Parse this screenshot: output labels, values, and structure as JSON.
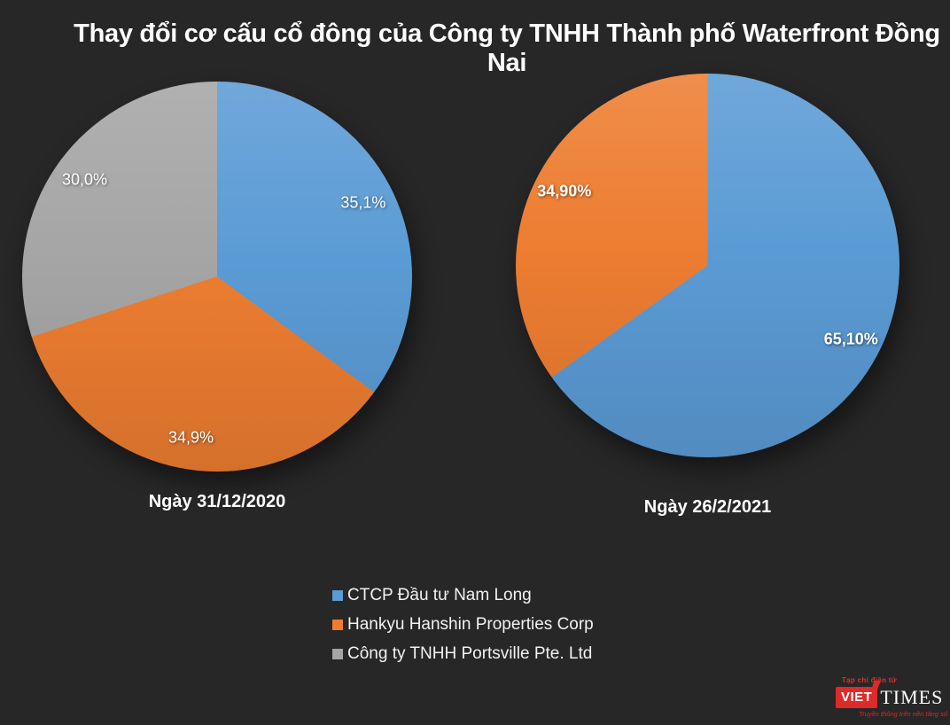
{
  "title": "Thay đổi cơ cấu cổ đông của Công ty TNHH Thành phố Waterfront Đồng Nai",
  "colors": {
    "background": "#272727",
    "blue": "#5B9BD5",
    "orange": "#ED7D31",
    "gray": "#A5A5A5",
    "text": "#FFFFFF",
    "logo_red": "#DD2A2A"
  },
  "chart_data": [
    {
      "type": "pie",
      "caption": "Ngày 31/12/2020",
      "bold_labels": false,
      "label_radius": 0.84,
      "start_angle_deg": 0,
      "direction": "clockwise",
      "slices": [
        {
          "label": "CTCP Đầu tư Nam Long",
          "value": 35.1,
          "display": "35,1%",
          "color": "#5B9BD5"
        },
        {
          "label": "Hankyu Hanshin Properties Corp",
          "value": 34.9,
          "display": "34,9%",
          "color": "#ED7D31"
        },
        {
          "label": "Công ty TNHH Portsville Pte. Ltd",
          "value": 30.0,
          "display": "30,0%",
          "color": "#A5A5A5"
        }
      ]
    },
    {
      "type": "pie",
      "caption": "Ngày 26/2/2021",
      "bold_labels": true,
      "label_radius": 0.84,
      "start_angle_deg": 0,
      "direction": "clockwise",
      "slices": [
        {
          "label": "CTCP Đầu tư Nam Long",
          "value": 65.1,
          "display": "65,10%",
          "color": "#5B9BD5"
        },
        {
          "label": "Hankyu Hanshin Properties Corp",
          "value": 34.9,
          "display": "34,90%",
          "color": "#ED7D31"
        }
      ]
    }
  ],
  "legend": {
    "items": [
      {
        "label": "CTCP Đầu tư Nam Long",
        "color": "#5B9BD5"
      },
      {
        "label": "Hankyu Hanshin Properties Corp",
        "color": "#ED7D31"
      },
      {
        "label": "Công ty TNHH Portsville Pte. Ltd",
        "color": "#A5A5A5"
      }
    ]
  },
  "logo": {
    "tagline_top": "Tạp chí điện tử",
    "brand_left": "VIET",
    "brand_right": "TIMES",
    "tagline_bottom": "Truyền thông trên nền tảng số"
  }
}
